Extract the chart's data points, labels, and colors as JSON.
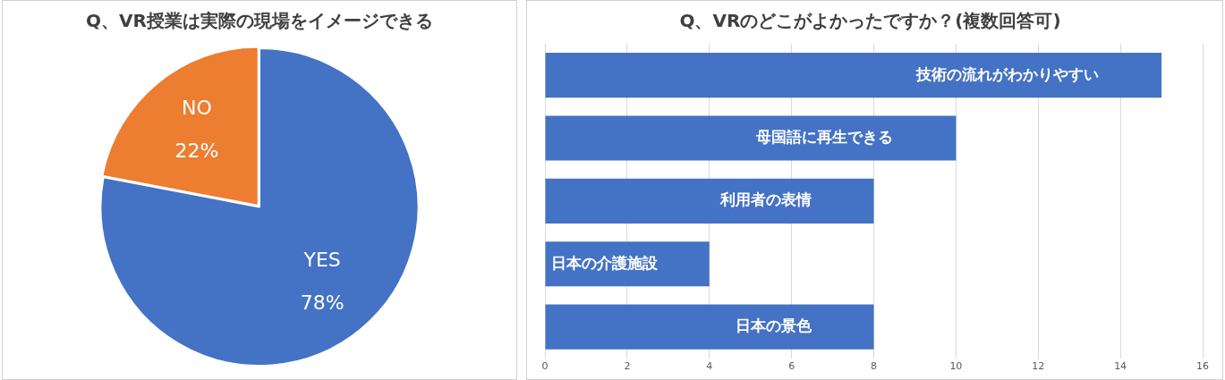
{
  "chart_data": [
    {
      "type": "pie",
      "title": "Q、VR授業は実際の現場をイメージできる",
      "categories": [
        "YES",
        "NO"
      ],
      "values": [
        78,
        22
      ],
      "colors": [
        "#4472c4",
        "#ed7d31"
      ],
      "value_labels": [
        "78%",
        "22%"
      ]
    },
    {
      "type": "bar",
      "title": "Q、VRのどこがよかったですか？(複数回答可)",
      "orientation": "horizontal",
      "categories": [
        "技術の流れがわかりやすい",
        "母国語に再生できる",
        "利用者の表情",
        "日本の介護施設",
        "日本の景色"
      ],
      "values": [
        15,
        10,
        8,
        4,
        8
      ],
      "color": "#4472c4",
      "xlim": [
        0,
        16
      ],
      "xticks": [
        0,
        2,
        4,
        6,
        8,
        10,
        12,
        14,
        16
      ],
      "grid": "x"
    }
  ]
}
